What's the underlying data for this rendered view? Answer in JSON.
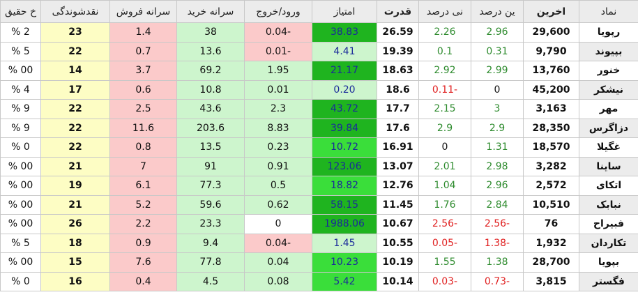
{
  "table": {
    "header": [
      "نماد",
      "اخرین",
      "ین درصد",
      "نی درصد",
      "قدرت",
      "امتیاز",
      "ورود/خروج",
      "سرانه خرید",
      "سرانه فروش",
      "نقدشوندگی",
      "خ حقیق"
    ],
    "rows": [
      [
        "رپویا",
        "29,600",
        "2.96",
        "2.26",
        "26.59",
        "38.83",
        "-0.04",
        "38",
        "1.4",
        "23",
        "2 %"
      ],
      [
        "بپیوند",
        "9,790",
        "0.31",
        "0.1",
        "19.39",
        "4.41",
        "-0.01",
        "13.6",
        "0.7",
        "22",
        "5 %"
      ],
      [
        "خنور",
        "13,760",
        "2.99",
        "2.92",
        "18.63",
        "21.17",
        "1.95",
        "69.2",
        "3.7",
        "14",
        "00 %"
      ],
      [
        "نیشکر",
        "45,200",
        "0",
        "-0.11",
        "18.6",
        "0.20",
        "0.01",
        "10.8",
        "0.6",
        "17",
        "4 %"
      ],
      [
        "مهر",
        "3,163",
        "3",
        "2.15",
        "17.7",
        "43.72",
        "2.3",
        "43.6",
        "2.5",
        "22",
        "9 %"
      ],
      [
        "دزاگرس",
        "28,350",
        "2.9",
        "2.9",
        "17.6",
        "39.84",
        "8.83",
        "203.6",
        "11.6",
        "22",
        "9 %"
      ],
      [
        "غگیلا",
        "18,570",
        "1.31",
        "0",
        "16.91",
        "10.72",
        "0.23",
        "13.5",
        "0.8",
        "22",
        "0 %"
      ],
      [
        "ساینا",
        "3,282",
        "2.98",
        "2.01",
        "13.07",
        "123.06",
        "0.91",
        "91",
        "7",
        "21",
        "00 %"
      ],
      [
        "اتکای",
        "2,572",
        "2.96",
        "1.04",
        "12.76",
        "18.82",
        "0.5",
        "77.3",
        "6.1",
        "19",
        "00 %"
      ],
      [
        "نبابک",
        "10,510",
        "2.84",
        "1.76",
        "11.45",
        "58.15",
        "0.62",
        "59.6",
        "5.2",
        "21",
        "00 %"
      ],
      [
        "فبیراح",
        "76",
        "-2.56",
        "-2.56",
        "10.67",
        "1988.06",
        "0",
        "23.3",
        "2.2",
        "26",
        "00 %"
      ],
      [
        "تکاردان",
        "1,932",
        "-1.38",
        "-0.05",
        "10.55",
        "1.45",
        "-0.04",
        "9.4",
        "0.9",
        "18",
        "5 %"
      ],
      [
        "بپویا",
        "28,700",
        "1.38",
        "1.55",
        "10.19",
        "10.23",
        "0.04",
        "77.8",
        "7.6",
        "15",
        "00 %"
      ],
      [
        "فگستر",
        "3,815",
        "-0.73",
        "-0.03",
        "10.14",
        "5.42",
        "0.08",
        "4.5",
        "0.4",
        "16",
        "0 %"
      ]
    ]
  }
}
